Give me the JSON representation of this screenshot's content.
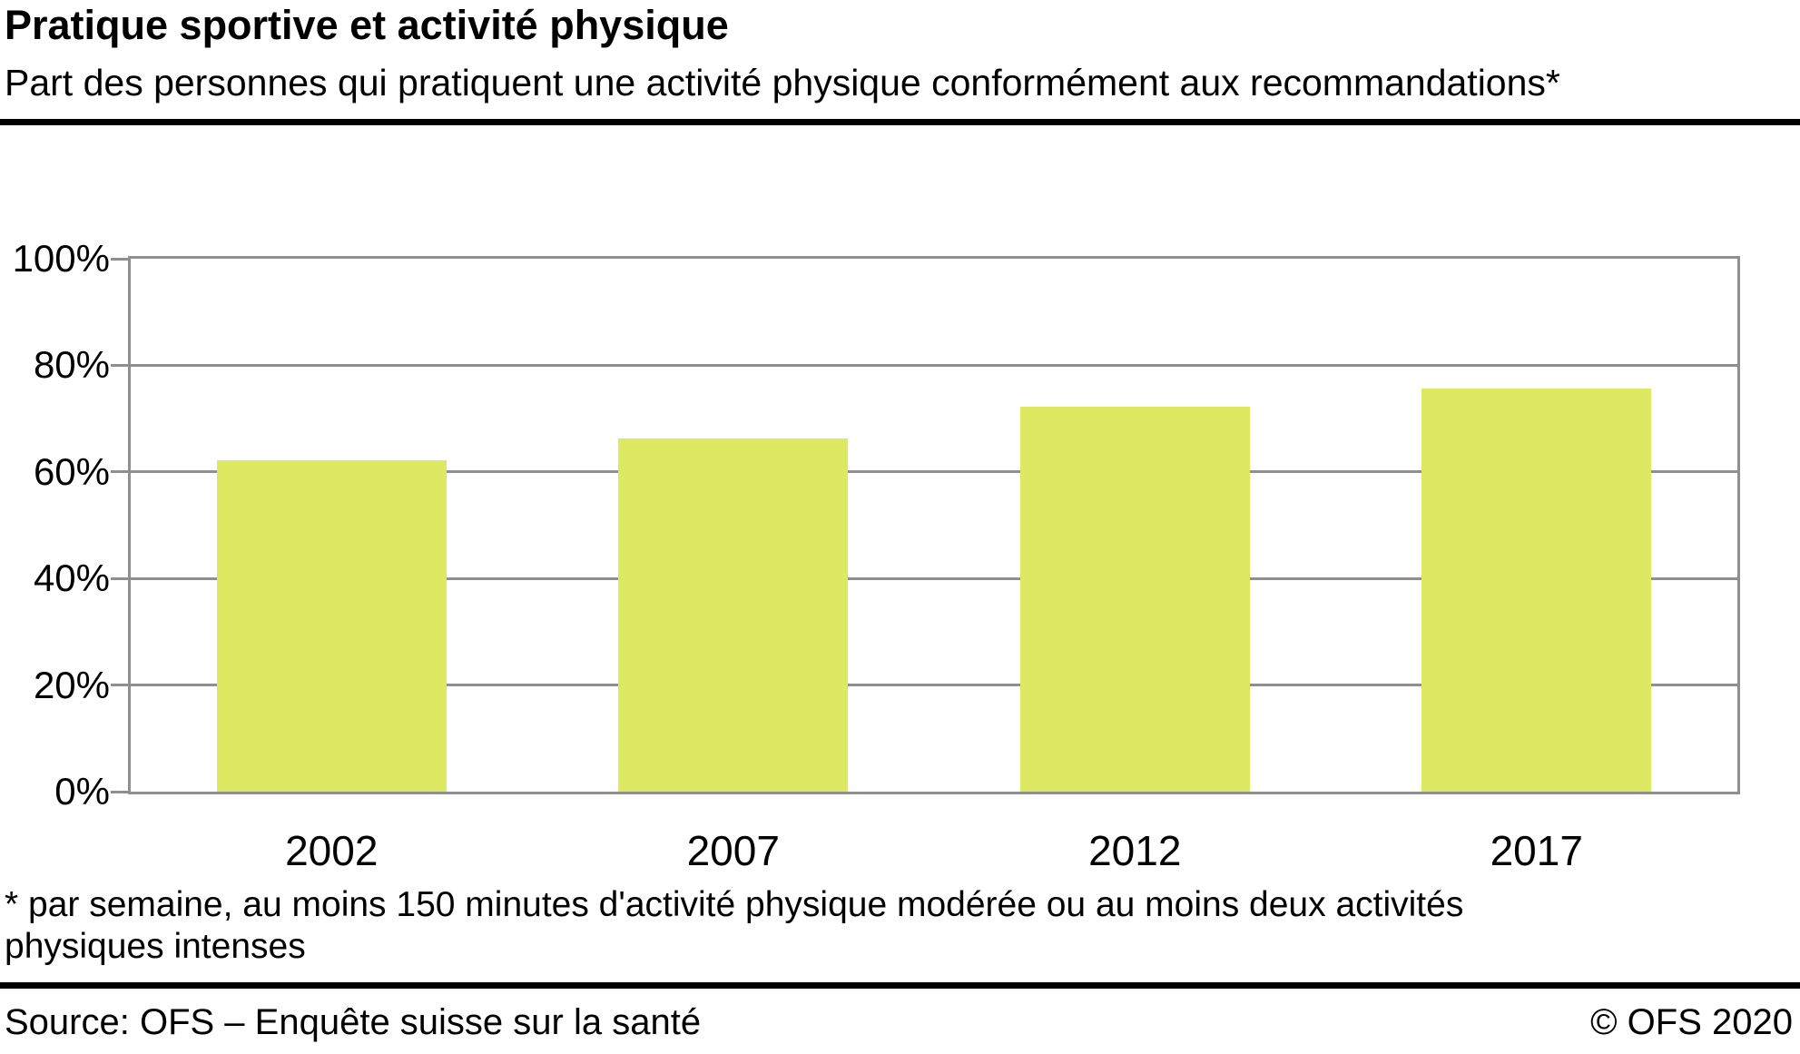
{
  "header": {
    "title": "Pratique sportive et activité physique",
    "subtitle": "Part des personnes qui pratiquent une activité physique conformément aux recommandations*"
  },
  "chart_data": {
    "type": "bar",
    "title": "Pratique sportive et activité physique",
    "categories": [
      "2002",
      "2007",
      "2012",
      "2017"
    ],
    "values": [
      62.2,
      66.3,
      72.2,
      75.7
    ],
    "unit": "%",
    "xlabel": "",
    "ylabel": "",
    "ylim": [
      0,
      100
    ],
    "yticks": [
      0,
      20,
      40,
      60,
      80,
      100
    ],
    "ytick_suffix": "%",
    "grid": true,
    "legend": "none",
    "bar_color": "#dde863",
    "axis_color": "#8f8f8f"
  },
  "footnote": {
    "line1": "* par semaine, au moins 150 minutes d'activité physique modérée ou au moins deux activités",
    "line2": "physiques intenses"
  },
  "footer": {
    "source": "Source: OFS – Enquête suisse sur la santé",
    "copyright": "© OFS 2020"
  }
}
